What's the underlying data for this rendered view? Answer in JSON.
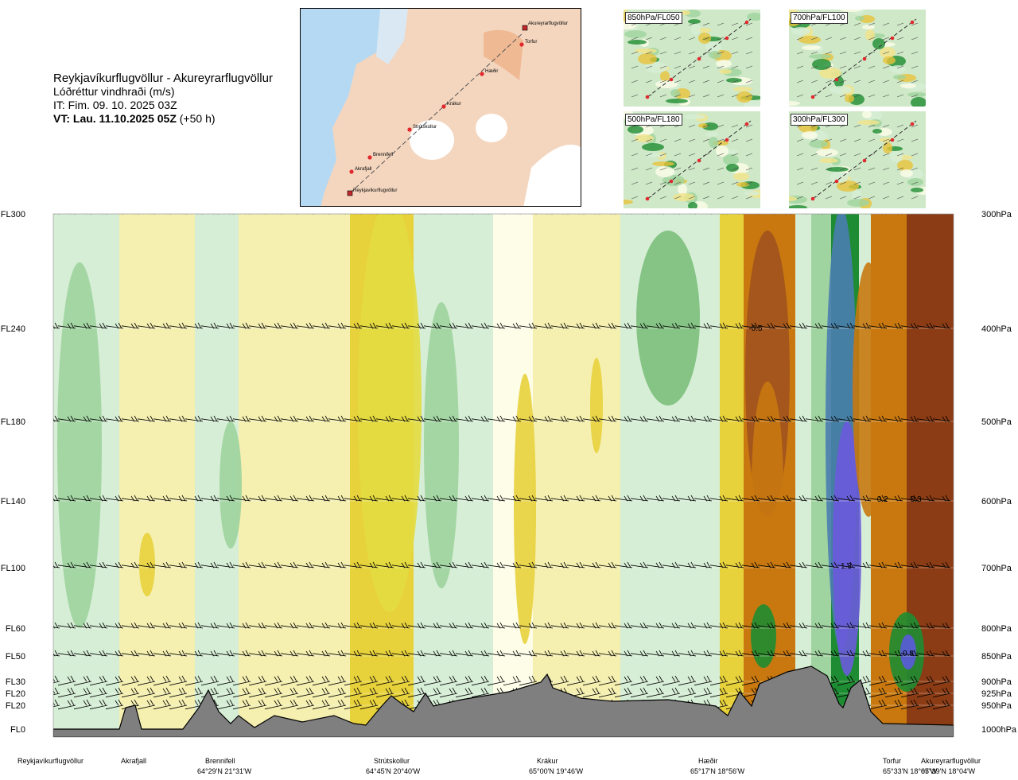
{
  "header": {
    "route": "Reykjavíkurflugvöllur - Akureyrarflugvöllur",
    "variable": "Lóðréttur vindhraði (m/s)",
    "it": "IT: Fim. 09. 10. 2025 03Z",
    "vt_bold": "VT: Lau. 11.10.2025 05Z",
    "vt_offset": "(+50 h)"
  },
  "map": {
    "places": [
      "Akureyrarflugvöllur",
      "Torfur",
      "Hæðir",
      "Krákur",
      "Strútskollur",
      "Brennifell",
      "Akrafjall",
      "Reykjavíkurflugvöllur"
    ]
  },
  "thumbnails": [
    "850hPa/FL050",
    "700hPa/FL100",
    "500hPa/FL180",
    "300hPa/FL300"
  ],
  "chart_data": {
    "type": "heatmap",
    "title": "Lóðréttur vindhraði (m/s)",
    "levels": [
      {
        "fl": "FL300",
        "hpa": "300hPa"
      },
      {
        "fl": "FL240",
        "hpa": "400hPa"
      },
      {
        "fl": "FL180",
        "hpa": "500hPa"
      },
      {
        "fl": "FL140",
        "hpa": "600hPa"
      },
      {
        "fl": "FL100",
        "hpa": "700hPa"
      },
      {
        "fl": "FL60",
        "hpa": "800hPa"
      },
      {
        "fl": "FL50",
        "hpa": "850hPa"
      },
      {
        "fl": "FL30",
        "hpa": "900hPa"
      },
      {
        "fl": "FL20",
        "hpa": "925hPa"
      },
      {
        "fl": "FL20",
        "hpa": "950hPa"
      },
      {
        "fl": "FL0",
        "hpa": "1000hPa"
      }
    ],
    "locations": [
      {
        "name": "Reykjavíkurflugvöllur",
        "coord": ""
      },
      {
        "name": "Akrafjall",
        "coord": ""
      },
      {
        "name": "Brennifell",
        "coord": "64°29'N 21°31'W"
      },
      {
        "name": "Strútskollur",
        "coord": "64°45'N 20°40'W"
      },
      {
        "name": "Krákur",
        "coord": "65°00'N 19°46'W"
      },
      {
        "name": "Hæðir",
        "coord": "65°17'N 18°56'W"
      },
      {
        "name": "Torfur",
        "coord": "65°33'N 18°07'W"
      },
      {
        "name": "Akureyrarflugvöllur",
        "coord": "65°39'N 18°04'W"
      }
    ],
    "annotations": [
      "-0.5",
      "-0.2",
      "-0.3",
      "1.3",
      "0.8"
    ],
    "colors": {
      "strong_down": "#8b3c14",
      "down": "#c8780f",
      "weak_down": "#e8d23c",
      "slight_down": "#f5efb0",
      "neutral": "#fdfde8",
      "slight_up": "#d6eed6",
      "up": "#9fd39f",
      "strong_up": "#1e8c32",
      "very_strong_up": "#5a5adc",
      "terrain": "#7f7f7f"
    }
  }
}
